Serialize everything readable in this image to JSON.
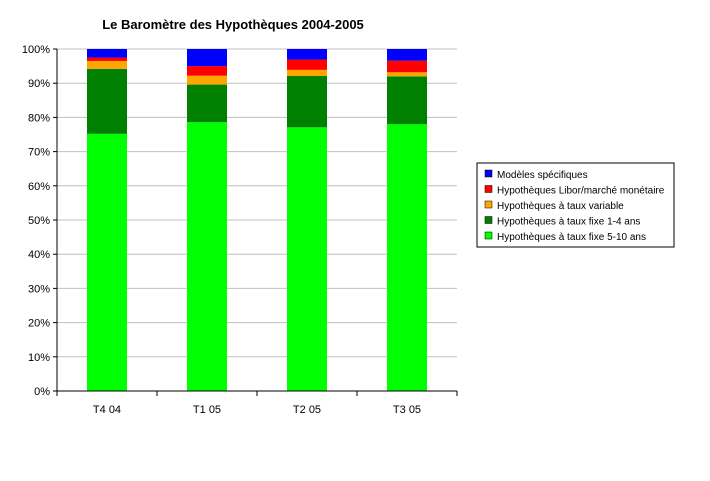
{
  "chart_data": {
    "type": "bar",
    "stacked": true,
    "title": "Le Baromètre des Hypothèques 2004-2005",
    "xlabel": "",
    "ylabel": "",
    "ylim": [
      0,
      100
    ],
    "yticks": [
      "0%",
      "10%",
      "20%",
      "30%",
      "40%",
      "50%",
      "60%",
      "70%",
      "80%",
      "90%",
      "100%"
    ],
    "grid": true,
    "legend_position": "right",
    "categories": [
      "T4 04",
      "T1 05",
      "T2 05",
      "T3 05"
    ],
    "series": [
      {
        "name": "Hypothèques à taux fixe 5-10 ans",
        "color": "#00ff00",
        "values": [
          75.2,
          78.6,
          77.1,
          78.0
        ]
      },
      {
        "name": "Hypothèques à taux fixe 1-4 ans",
        "color": "#008000",
        "values": [
          19.0,
          11.0,
          15.0,
          14.0
        ]
      },
      {
        "name": "Hypothèques à taux variable",
        "color": "#ffa500",
        "values": [
          2.3,
          2.6,
          1.8,
          1.2
        ]
      },
      {
        "name": "Hypothèques Libor/marché monétaire",
        "color": "#ff0000",
        "values": [
          1.0,
          2.8,
          3.0,
          3.4
        ]
      },
      {
        "name": "Modèles spécifiques",
        "color": "#0000ff",
        "values": [
          2.5,
          5.0,
          3.1,
          3.4
        ]
      }
    ],
    "legend_order": [
      "Modèles spécifiques",
      "Hypothèques Libor/marché monétaire",
      "Hypothèques à taux variable",
      "Hypothèques à taux fixe 1-4 ans",
      "Hypothèques à taux fixe 5-10 ans"
    ]
  }
}
